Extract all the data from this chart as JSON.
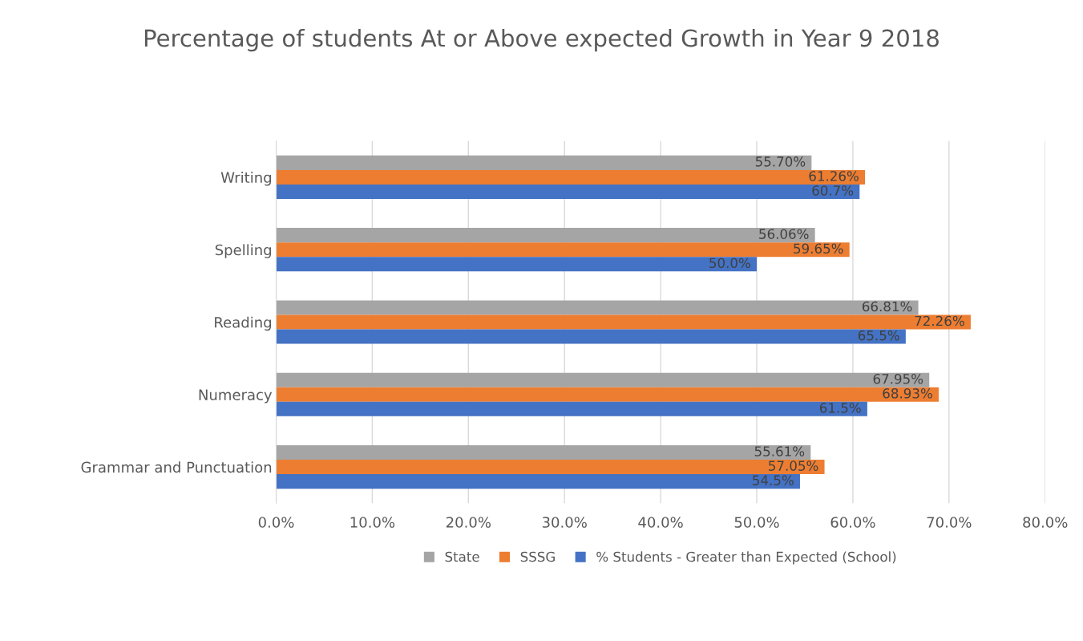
{
  "chart_data": {
    "type": "bar",
    "orientation": "horizontal",
    "title": "Percentage of students At or Above expected Growth in Year 9 2018",
    "categories": [
      "Writing",
      "Spelling",
      "Reading",
      "Numeracy",
      "Grammar and Punctuation"
    ],
    "series": [
      {
        "name": "State",
        "color": "#a5a5a5",
        "values": [
          55.7,
          56.06,
          66.81,
          67.95,
          55.61
        ],
        "value_labels": [
          "55.70%",
          "56.06%",
          "66.81%",
          "67.95%",
          "55.61%"
        ]
      },
      {
        "name": "SSSG",
        "color": "#ed7d31",
        "values": [
          61.26,
          59.65,
          72.26,
          68.93,
          57.05
        ],
        "value_labels": [
          "61.26%",
          "59.65%",
          "72.26%",
          "68.93%",
          "57.05%"
        ]
      },
      {
        "name": "% Students - Greater than Expected (School)",
        "color": "#4472c4",
        "values": [
          60.7,
          50.0,
          65.5,
          61.5,
          54.5
        ],
        "value_labels": [
          "60.7%",
          "50.0%",
          "65.5%",
          "61.5%",
          "54.5%"
        ]
      }
    ],
    "xlim": [
      0,
      80
    ],
    "xticks": [
      {
        "value": 0,
        "label": "0.0%"
      },
      {
        "value": 10,
        "label": "10.0%"
      },
      {
        "value": 20,
        "label": "20.0%"
      },
      {
        "value": 30,
        "label": "30.0%"
      },
      {
        "value": 40,
        "label": "40.0%"
      },
      {
        "value": 50,
        "label": "50.0%"
      },
      {
        "value": 60,
        "label": "60.0%"
      },
      {
        "value": 70,
        "label": "70.0%"
      },
      {
        "value": 80,
        "label": "80.0%"
      }
    ],
    "grid": "x",
    "legend": "bottom"
  }
}
